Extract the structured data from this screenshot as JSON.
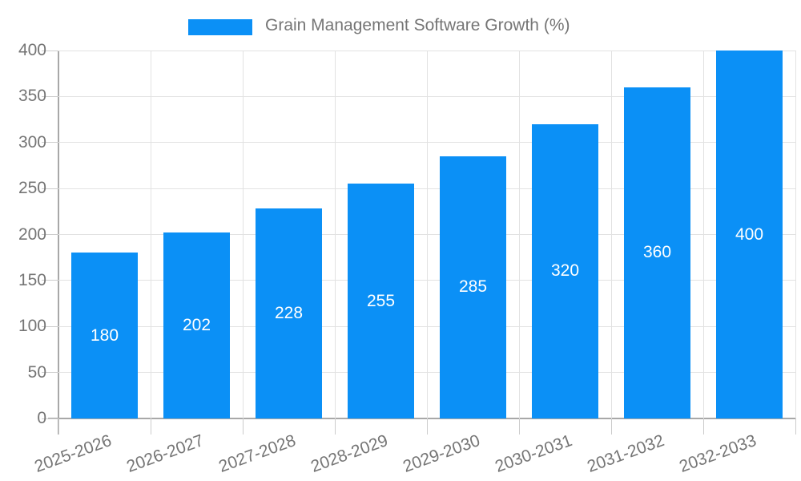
{
  "legend": {
    "label": "Grain Management Software Growth (%)"
  },
  "colors": {
    "bar": "#0b90f6",
    "grid": "#e2e2e2",
    "axis": "#a8a8a8",
    "tick": "#cccccc",
    "text": "#757575",
    "bar_label": "#ffffff"
  },
  "chart_data": {
    "type": "bar",
    "title": "Grain Management Software Growth (%)",
    "categories": [
      "2025-2026",
      "2026-2027",
      "2027-2028",
      "2028-2029",
      "2029-2030",
      "2030-2031",
      "2031-2032",
      "2032-2033"
    ],
    "values": [
      180,
      202,
      228,
      255,
      285,
      320,
      360,
      400
    ],
    "xlabel": "",
    "ylabel": "",
    "ylim": [
      0,
      400
    ],
    "ytick_step": 50,
    "ytick_labels": [
      "0",
      "50",
      "100",
      "150",
      "200",
      "250",
      "300",
      "350",
      "400"
    ],
    "grid": true,
    "legend_position": "top",
    "bar_labels_inside": true
  }
}
